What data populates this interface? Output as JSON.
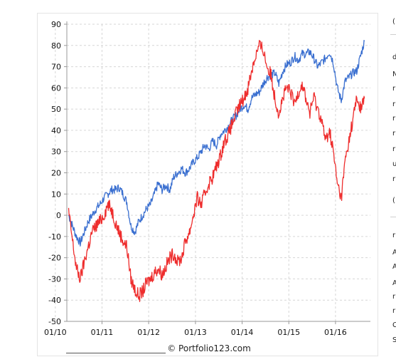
{
  "credit": "© Portfolio123.com",
  "colors": {
    "series_blue": "#3a6fd0",
    "series_red": "#ee2d2d",
    "grid": "#d6d6d6",
    "axis": "#999999"
  },
  "right_strip": {
    "glyphs": [
      "(",
      "d",
      "N",
      "r",
      "r",
      "r",
      "r",
      "r",
      "u",
      "r",
      "(",
      "r",
      "A",
      "A",
      "A",
      "r",
      "r",
      "C",
      "S"
    ]
  },
  "chart_data": {
    "type": "line",
    "title": "",
    "xlabel": "",
    "ylabel": "",
    "ylim": [
      -50,
      90
    ],
    "yticks": [
      -50,
      -40,
      -30,
      -20,
      -10,
      0,
      10,
      20,
      30,
      40,
      50,
      60,
      70,
      80,
      90
    ],
    "xlim": [
      "2010-04-01",
      "2016-09-30"
    ],
    "xtick_labels": [
      "01/10",
      "01/11",
      "01/12",
      "01/13",
      "01/14",
      "01/15",
      "01/16"
    ],
    "xtick_dates": [
      "2010-01-01",
      "2011-01-01",
      "2012-01-01",
      "2013-01-01",
      "2014-01-01",
      "2015-01-01",
      "2016-01-01"
    ],
    "grid": true,
    "series": [
      {
        "color": "#3a6fd0",
        "x": [
          "2010-04-15",
          "2010-05-15",
          "2010-06-15",
          "2010-07-15",
          "2010-08-15",
          "2010-09-15",
          "2010-10-15",
          "2010-11-15",
          "2010-12-15",
          "2011-01-15",
          "2011-02-15",
          "2011-03-15",
          "2011-04-15",
          "2011-05-15",
          "2011-06-15",
          "2011-07-15",
          "2011-08-15",
          "2011-09-15",
          "2011-10-15",
          "2011-11-15",
          "2011-12-15",
          "2012-01-15",
          "2012-02-15",
          "2012-03-15",
          "2012-04-15",
          "2012-05-15",
          "2012-06-15",
          "2012-07-15",
          "2012-08-15",
          "2012-09-15",
          "2012-10-15",
          "2012-11-15",
          "2012-12-15",
          "2013-01-15",
          "2013-02-15",
          "2013-03-15",
          "2013-04-15",
          "2013-05-15",
          "2013-06-15",
          "2013-07-15",
          "2013-08-15",
          "2013-09-15",
          "2013-10-15",
          "2013-11-15",
          "2013-12-15",
          "2014-01-15",
          "2014-02-15",
          "2014-03-15",
          "2014-04-15",
          "2014-05-15",
          "2014-06-15",
          "2014-07-15",
          "2014-08-15",
          "2014-09-15",
          "2014-10-15",
          "2014-11-15",
          "2014-12-15",
          "2015-01-15",
          "2015-02-15",
          "2015-03-15",
          "2015-04-15",
          "2015-05-15",
          "2015-06-15",
          "2015-07-15",
          "2015-08-15",
          "2015-09-15",
          "2015-10-15",
          "2015-11-15",
          "2015-12-15",
          "2016-01-15",
          "2016-02-15",
          "2016-03-15",
          "2016-04-15",
          "2016-05-15",
          "2016-06-15",
          "2016-07-15",
          "2016-08-15"
        ],
        "values": [
          0,
          -5,
          -10,
          -13,
          -8,
          -3,
          0,
          3,
          5,
          8,
          10,
          12,
          12,
          13,
          10,
          6,
          -5,
          -8,
          -3,
          0,
          3,
          5,
          10,
          15,
          12,
          14,
          12,
          18,
          20,
          22,
          20,
          22,
          25,
          27,
          30,
          33,
          31,
          35,
          33,
          38,
          40,
          42,
          45,
          47,
          50,
          52,
          50,
          55,
          57,
          58,
          62,
          65,
          66,
          67,
          62,
          68,
          71,
          72,
          75,
          73,
          76,
          76,
          77,
          74,
          70,
          72,
          74,
          77,
          72,
          60,
          54,
          63,
          65,
          67,
          68,
          75,
          82
        ]
      },
      {
        "color": "#ee2d2d",
        "x": [
          "2010-04-15",
          "2010-05-15",
          "2010-06-15",
          "2010-07-15",
          "2010-08-15",
          "2010-09-15",
          "2010-10-15",
          "2010-11-15",
          "2010-12-15",
          "2011-01-15",
          "2011-02-15",
          "2011-03-15",
          "2011-04-15",
          "2011-05-15",
          "2011-06-15",
          "2011-07-15",
          "2011-08-15",
          "2011-09-15",
          "2011-10-15",
          "2011-11-15",
          "2011-12-15",
          "2012-01-15",
          "2012-02-15",
          "2012-03-15",
          "2012-04-15",
          "2012-05-15",
          "2012-06-15",
          "2012-07-15",
          "2012-08-15",
          "2012-09-15",
          "2012-10-15",
          "2012-11-15",
          "2012-12-15",
          "2013-01-15",
          "2013-02-15",
          "2013-03-15",
          "2013-04-15",
          "2013-05-15",
          "2013-06-15",
          "2013-07-15",
          "2013-08-15",
          "2013-09-15",
          "2013-10-15",
          "2013-11-15",
          "2013-12-15",
          "2014-01-15",
          "2014-02-15",
          "2014-03-15",
          "2014-04-15",
          "2014-05-15",
          "2014-06-15",
          "2014-07-15",
          "2014-08-15",
          "2014-09-15",
          "2014-10-15",
          "2014-11-15",
          "2014-12-15",
          "2015-01-15",
          "2015-02-15",
          "2015-03-15",
          "2015-04-15",
          "2015-05-15",
          "2015-06-15",
          "2015-07-15",
          "2015-08-15",
          "2015-09-15",
          "2015-10-15",
          "2015-11-15",
          "2015-12-15",
          "2016-01-15",
          "2016-02-15",
          "2016-03-15",
          "2016-04-15",
          "2016-05-15",
          "2016-06-15",
          "2016-07-15",
          "2016-08-15"
        ],
        "values": [
          2,
          -12,
          -25,
          -30,
          -22,
          -15,
          -8,
          -5,
          -3,
          0,
          5,
          3,
          -3,
          -8,
          -12,
          -15,
          -30,
          -35,
          -38,
          -36,
          -32,
          -30,
          -27,
          -25,
          -28,
          -24,
          -20,
          -18,
          -22,
          -20,
          -12,
          -8,
          0,
          8,
          5,
          10,
          15,
          18,
          23,
          28,
          35,
          38,
          43,
          48,
          52,
          55,
          60,
          68,
          75,
          80,
          78,
          70,
          66,
          55,
          48,
          55,
          60,
          58,
          52,
          58,
          62,
          55,
          48,
          56,
          50,
          45,
          35,
          40,
          30,
          15,
          8,
          25,
          35,
          45,
          55,
          50,
          55
        ]
      }
    ]
  }
}
